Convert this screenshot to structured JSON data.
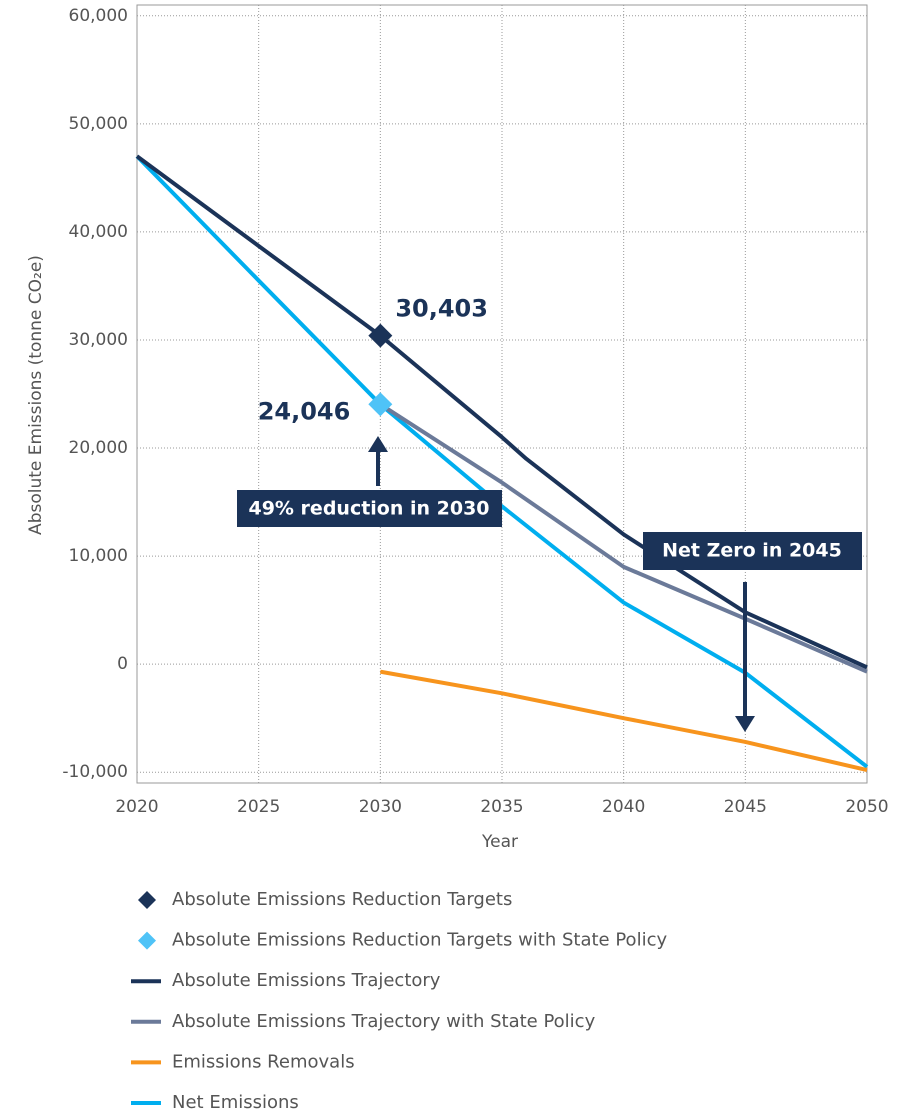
{
  "chart_data": {
    "type": "line",
    "xlabel": "Year",
    "ylabel": "Absolute Emissions (tonne CO₂e)",
    "xlim": [
      2020,
      2050
    ],
    "xticks": [
      2020,
      2025,
      2030,
      2035,
      2040,
      2045,
      2050
    ],
    "ylim": [
      -11000,
      61000
    ],
    "yticks": [
      {
        "value": -10000,
        "label": "-10,000"
      },
      0,
      {
        "value": 10000,
        "label": "10,000"
      },
      {
        "value": 20000,
        "label": "20,000"
      },
      {
        "value": 30000,
        "label": "30,000"
      },
      {
        "value": 40000,
        "label": "40,000"
      },
      {
        "value": 50000,
        "label": "50,000"
      },
      {
        "value": 60000,
        "label": "60,000"
      }
    ],
    "grid": true,
    "series": [
      {
        "name": "Absolute Emissions Reduction Targets",
        "color": "#1b3358",
        "marker": "diamond",
        "x": [
          2030
        ],
        "values": [
          30403
        ],
        "value_labels": [
          "30,403"
        ]
      },
      {
        "name": "Absolute Emissions Reduction Targets with State Policy",
        "color": "#4fc3f7",
        "marker": "diamond",
        "x": [
          2030
        ],
        "values": [
          24046
        ],
        "value_labels": [
          "24,046"
        ]
      },
      {
        "name": "Absolute Emissions Trajectory",
        "color": "#1b3358",
        "x": [
          2020,
          2025,
          2030,
          2035,
          2036,
          2040,
          2045,
          2050
        ],
        "values": [
          47000,
          38700,
          30403,
          21000,
          19000,
          12000,
          4800,
          -300
        ]
      },
      {
        "name": "Absolute Emissions Trajectory with State Policy",
        "color": "#6b7a99",
        "x": [
          2030,
          2035,
          2040,
          2045,
          2050
        ],
        "values": [
          24046,
          16800,
          9000,
          4200,
          -700
        ]
      },
      {
        "name": "Emissions Removals",
        "color": "#f7941d",
        "x": [
          2030,
          2035,
          2040,
          2045,
          2050
        ],
        "values": [
          -700,
          -2700,
          -5000,
          -7200,
          -9800
        ]
      },
      {
        "name": "Net Emissions",
        "color": "#00aeef",
        "x": [
          2020,
          2025,
          2030,
          2035,
          2040,
          2045,
          2050
        ],
        "values": [
          47000,
          35500,
          24046,
          14600,
          5700,
          -800,
          -9500
        ]
      }
    ],
    "annotations": [
      "49% reduction in 2030",
      "Net Zero in 2045"
    ]
  }
}
